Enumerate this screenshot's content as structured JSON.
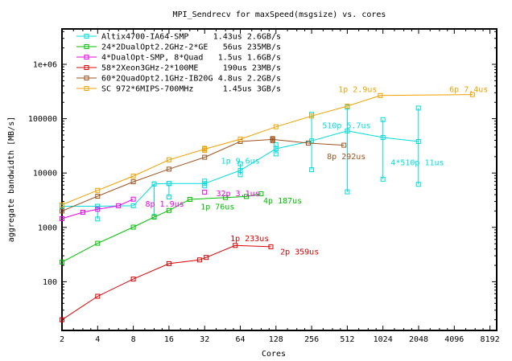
{
  "title": "MPI_Sendrecv for maxSpeed(msgsize) vs. cores",
  "axes": {
    "x": {
      "label": "Cores",
      "scale": "log2",
      "min": 2,
      "max": 9800,
      "tick_labels": [
        "2",
        "4",
        "8",
        "16",
        "32",
        "64",
        "128",
        "256",
        "512",
        "1024",
        "2048",
        "4096",
        "8192"
      ],
      "ticks": [
        2,
        4,
        8,
        16,
        32,
        64,
        128,
        256,
        512,
        1024,
        2048,
        4096,
        8192
      ]
    },
    "y": {
      "label": "aggregate bandwidth [MB/s]",
      "scale": "log10",
      "min": 12.6,
      "max": 4400000,
      "tick_labels": [
        "100",
        "1000",
        "10000",
        "100000",
        "1e+06"
      ],
      "ticks": [
        100,
        1000,
        10000,
        100000,
        1000000
      ]
    }
  },
  "chart_data": {
    "type": "line",
    "title": "MPI_Sendrecv for maxSpeed(msgsize) vs. cores",
    "xlabel": "Cores",
    "ylabel": "aggregate bandwidth [MB/s]",
    "xlim": [
      2,
      9800
    ],
    "ylim": [
      12.6,
      4400000
    ],
    "log_x": 2,
    "log_y": 10,
    "grid": false,
    "legend_position": "top-left-inside",
    "series": [
      {
        "key": "altix",
        "name": "Altix4700-IA64-SMP",
        "legend_stats": "1.43us 2.6GB/s",
        "color": "#00dcdc",
        "marker": "open-square",
        "points": [
          [
            2,
            2450
          ],
          [
            4,
            2450
          ],
          [
            8,
            2500
          ],
          [
            12,
            6300
          ],
          [
            16,
            6400
          ],
          [
            32,
            6400
          ],
          [
            64,
            11200
          ],
          [
            128,
            28000
          ],
          [
            256,
            39000
          ],
          [
            512,
            59500
          ],
          [
            1024,
            45000
          ],
          [
            2040,
            38000
          ]
        ],
        "error_bars": [
          [
            4,
            1430,
            2450
          ],
          [
            12,
            1580,
            6300
          ],
          [
            16,
            3630,
            6400
          ],
          [
            32,
            5800,
            7100
          ],
          [
            64,
            9300,
            14800
          ],
          [
            128,
            22500,
            33000
          ],
          [
            256,
            11500,
            120000
          ],
          [
            512,
            4500,
            163000
          ],
          [
            1024,
            7700,
            96000
          ],
          [
            2040,
            6200,
            157000
          ]
        ]
      },
      {
        "key": "dualopt-ge",
        "name": "24*2DualOpt2.2GHz-2*GE",
        "legend_stats": "  56us 235MB/s",
        "color": "#00c000",
        "marker": "open-square",
        "points": [
          [
            2,
            230
          ],
          [
            4,
            510
          ],
          [
            8,
            1010
          ],
          [
            12,
            1550
          ],
          [
            16,
            2050
          ],
          [
            24,
            3270
          ],
          [
            48,
            3540
          ],
          [
            72,
            3700
          ],
          [
            96,
            4150
          ]
        ],
        "error_bars": []
      },
      {
        "key": "dualopt-smp",
        "name": "4*DualOpt-SMP, 8*Quad",
        "legend_stats": " 1.5us 1.6GB/s",
        "color": "#ee00ee",
        "marker": "open-square",
        "points": [
          [
            2,
            1450
          ],
          [
            3,
            1900
          ],
          [
            4,
            2150
          ],
          [
            6,
            2500
          ],
          [
            8,
            3300
          ]
        ],
        "isolated_points": [
          [
            32,
            4450
          ]
        ],
        "error_bars": []
      },
      {
        "key": "xeon",
        "name": "58*2Xeon3GHz-2*100ME",
        "legend_stats": " 190us  23MB/s",
        "color": "#dd0000",
        "marker": "open-square",
        "points": [
          [
            2,
            20
          ],
          [
            4,
            54
          ],
          [
            8,
            112
          ],
          [
            16,
            215
          ],
          [
            29,
            252
          ],
          [
            33,
            280
          ],
          [
            58,
            465
          ],
          [
            116,
            440
          ]
        ],
        "error_bars": []
      },
      {
        "key": "quadopt-ib",
        "name": "60*2QuadOpt2.1GHz-IB20G",
        "legend_stats": " 4.8us 2.2GB/s",
        "color": "#a0521e",
        "marker": "open-square",
        "points": [
          [
            2,
            2000
          ],
          [
            4,
            3750
          ],
          [
            8,
            6900
          ],
          [
            16,
            11800
          ],
          [
            32,
            19500
          ],
          [
            64,
            38000
          ],
          [
            120,
            41500
          ],
          [
            240,
            35500
          ],
          [
            480,
            32500
          ]
        ],
        "error_bars": [
          [
            120,
            39500,
            43000
          ]
        ]
      },
      {
        "key": "sc-mips",
        "name": "SC 972*6MIPS-700MHz",
        "legend_stats": "1.45us   3GB/s",
        "color": "#f0a000",
        "marker": "open-square",
        "points": [
          [
            2,
            2600
          ],
          [
            4,
            4800
          ],
          [
            8,
            8800
          ],
          [
            16,
            17500
          ],
          [
            32,
            27500
          ],
          [
            64,
            42000
          ],
          [
            128,
            71000
          ],
          [
            256,
            112000
          ],
          [
            512,
            170000
          ],
          [
            972,
            267000
          ],
          [
            5832,
            278000
          ]
        ],
        "error_bars": [
          [
            32,
            26000,
            28500
          ]
        ]
      }
    ],
    "annotations": [
      {
        "series": "sc-mips",
        "text": "1p 2.9us",
        "x": 430,
        "y": 350000
      },
      {
        "series": "sc-mips",
        "text": "6p 7.4us",
        "x": 3720,
        "y": 350000
      },
      {
        "series": "altix",
        "text": "510p 5.7us",
        "x": 315,
        "y": 75000
      },
      {
        "series": "altix",
        "text": "4*510p 11us",
        "x": 1190,
        "y": 15700
      },
      {
        "series": "altix",
        "text": "1p 9.6us",
        "x": 44,
        "y": 16700
      },
      {
        "series": "quadopt-ib",
        "text": "8p 292us",
        "x": 345,
        "y": 20400
      },
      {
        "series": "dualopt-smp",
        "text": "8p 1.9us",
        "x": 10.1,
        "y": 2700
      },
      {
        "series": "dualopt-smp",
        "text": "32p 3.1us",
        "x": 40,
        "y": 4200
      },
      {
        "series": "dualopt-ge",
        "text": "1p 76us",
        "x": 29.6,
        "y": 2400
      },
      {
        "series": "dualopt-ge",
        "text": "4p 187us",
        "x": 100,
        "y": 3100
      },
      {
        "series": "xeon",
        "text": "1p 233us",
        "x": 52.7,
        "y": 630
      },
      {
        "series": "xeon",
        "text": "2p 359us",
        "x": 139,
        "y": 355
      }
    ]
  },
  "legend": {
    "text_color": "#000000",
    "entries_from_series": true
  }
}
